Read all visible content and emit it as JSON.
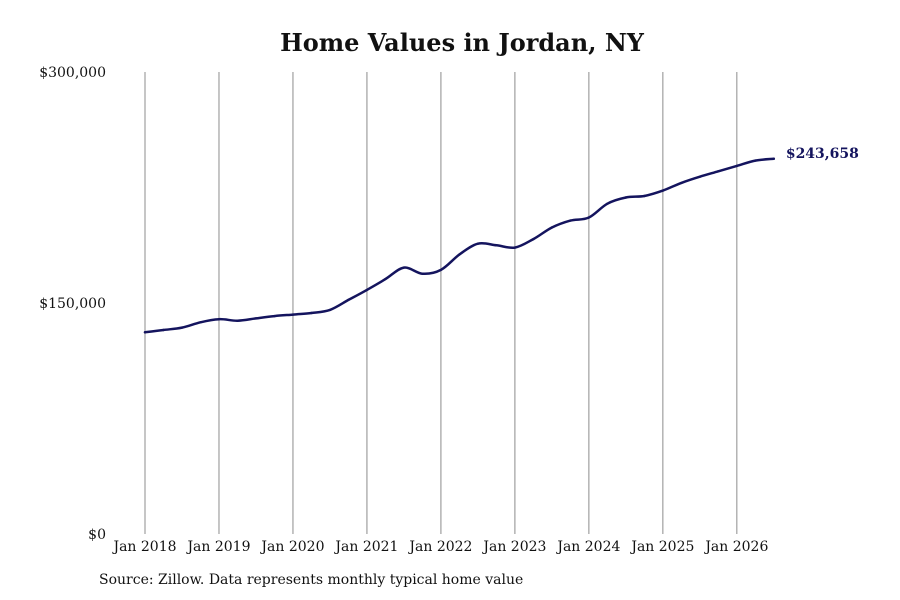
{
  "colors": {
    "line": "#14145e",
    "grid": "#8c8c8c",
    "text": "#111111"
  },
  "source": "Source: Zillow. Data represents monthly typical home value",
  "chart_data": {
    "type": "line",
    "title": "Home Values in Jordan, NY",
    "xlabel": "",
    "ylabel": "",
    "ylim": [
      0,
      300000
    ],
    "xlim": [
      "2018-01",
      "2026-08"
    ],
    "grid": {
      "vertical": true,
      "horizontal": false
    },
    "legend": "none",
    "y_ticks": [
      {
        "value": 0,
        "label": "$0"
      },
      {
        "value": 150000,
        "label": "$150,000"
      },
      {
        "value": 300000,
        "label": "$300,000"
      }
    ],
    "x_ticks": [
      {
        "value": "2018-01",
        "label": "Jan 2018"
      },
      {
        "value": "2019-01",
        "label": "Jan 2019"
      },
      {
        "value": "2020-01",
        "label": "Jan 2020"
      },
      {
        "value": "2021-01",
        "label": "Jan 2021"
      },
      {
        "value": "2022-01",
        "label": "Jan 2022"
      },
      {
        "value": "2023-01",
        "label": "Jan 2023"
      },
      {
        "value": "2024-01",
        "label": "Jan 2024"
      },
      {
        "value": "2025-01",
        "label": "Jan 2025"
      },
      {
        "value": "2026-01",
        "label": "Jan 2026"
      }
    ],
    "end_label": "$243,658",
    "series": [
      {
        "x": [
          "2018-01",
          "2018-04",
          "2018-07",
          "2018-10",
          "2019-01",
          "2019-04",
          "2019-07",
          "2019-10",
          "2020-01",
          "2020-04",
          "2020-07",
          "2020-10",
          "2021-01",
          "2021-04",
          "2021-07",
          "2021-10",
          "2022-01",
          "2022-04",
          "2022-07",
          "2022-10",
          "2023-01",
          "2023-04",
          "2023-07",
          "2023-10",
          "2024-01",
          "2024-04",
          "2024-07",
          "2024-10",
          "2025-01",
          "2025-04",
          "2025-07",
          "2025-10",
          "2026-01",
          "2026-04",
          "2026-07"
        ],
        "values": [
          131000,
          132500,
          134000,
          137500,
          139500,
          138500,
          140000,
          141500,
          142500,
          143500,
          145500,
          152000,
          158500,
          165500,
          173000,
          169000,
          171500,
          181500,
          188500,
          187500,
          186000,
          191500,
          199000,
          203500,
          205500,
          214500,
          218500,
          219500,
          223000,
          228000,
          232000,
          235500,
          239000,
          242500,
          243658
        ]
      }
    ]
  }
}
